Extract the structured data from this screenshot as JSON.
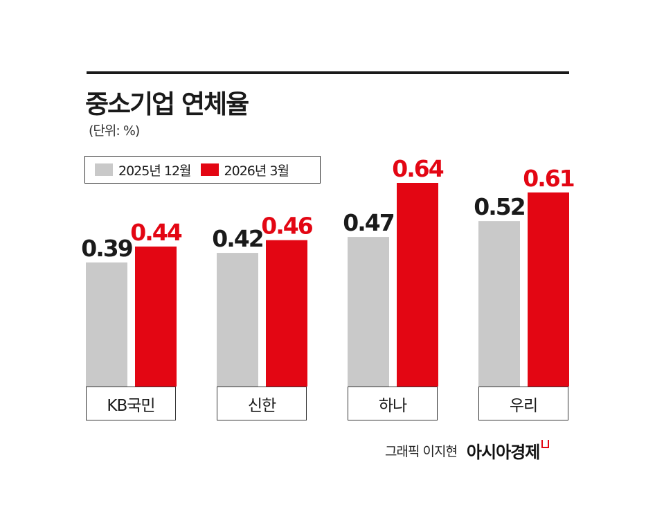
{
  "title": "중소기업 연체율",
  "unit_label": "(단위: %)",
  "legend": [
    {
      "label": "2025년 12월",
      "color": "#c9c9c9"
    },
    {
      "label": "2026년 3월",
      "color": "#e30613"
    }
  ],
  "chart_data": {
    "type": "bar",
    "title": "중소기업 연체율",
    "categories": [
      "KB국민",
      "신한",
      "하나",
      "우리"
    ],
    "series": [
      {
        "name": "2025년 12월",
        "values": [
          0.39,
          0.42,
          0.47,
          0.52
        ],
        "labels": [
          "0.39",
          "0.42",
          "0.47",
          "0.52"
        ],
        "color": "#c9c9c9",
        "label_color": "#1a1a1a"
      },
      {
        "name": "2026년 3월",
        "values": [
          0.44,
          0.46,
          0.64,
          0.61
        ],
        "labels": [
          "0.44",
          "0.46",
          "0.64",
          "0.61"
        ],
        "color": "#e30613",
        "label_color": "#e30613"
      }
    ],
    "ylim": [
      0,
      0.64
    ],
    "grid": false,
    "legend_position": "top-left"
  },
  "credit": {
    "text": "그래픽 이지현",
    "brand": "아시아경제"
  }
}
